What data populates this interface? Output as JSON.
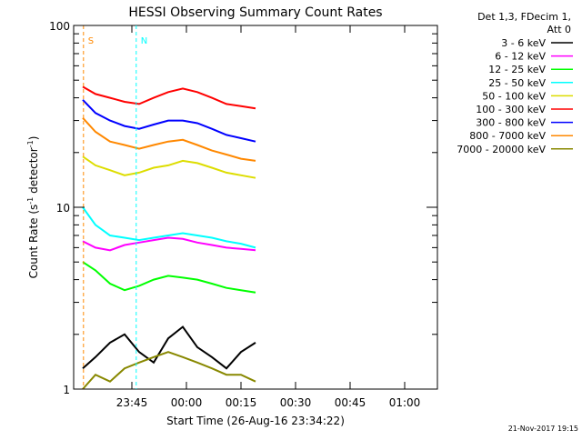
{
  "chart_data": {
    "type": "line",
    "title": "HESSI Observing Summary Count Rates",
    "xlabel": "Start Time (26-Aug-16 23:34:22)",
    "ylabel": "Count Rate (s",
    "ylabel_sup": "-1",
    "ylabel_tail": " detector",
    "ylabel_sup2": "-1",
    "ylabel_end": ")",
    "y_scale": "log",
    "ylim": [
      1,
      100
    ],
    "xlim_minutes": [
      -16,
      84
    ],
    "x_tick_labels": [
      {
        "label": "23:45",
        "minute": 0
      },
      {
        "label": "00:00",
        "minute": 15
      },
      {
        "label": "00:15",
        "minute": 30
      },
      {
        "label": "00:30",
        "minute": 45
      },
      {
        "label": "00:45",
        "minute": 60
      },
      {
        "label": "01:00",
        "minute": 75
      }
    ],
    "y_tick_labels": [
      {
        "label": "1",
        "value": 1
      },
      {
        "label": "10",
        "value": 10
      },
      {
        "label": "100",
        "value": 100
      }
    ],
    "legend_header": [
      "Det 1,3, FDecim 1,",
      "Att 0"
    ],
    "legend_position": "right",
    "series": [
      {
        "name": "3 - 6 keV",
        "color": "#000000",
        "values": [
          1.3,
          1.5,
          1.8,
          2.0,
          1.6,
          1.4,
          1.9,
          2.2,
          1.7,
          1.5,
          1.3,
          1.6,
          1.8
        ]
      },
      {
        "name": "6 - 12 keV",
        "color": "#ff00ff",
        "values": [
          6.5,
          6.0,
          5.8,
          6.2,
          6.4,
          6.6,
          6.8,
          6.7,
          6.4,
          6.2,
          6.0,
          5.9,
          5.8
        ]
      },
      {
        "name": "12 - 25 keV",
        "color": "#00ff00",
        "values": [
          5.0,
          4.5,
          3.8,
          3.5,
          3.7,
          4.0,
          4.2,
          4.1,
          4.0,
          3.8,
          3.6,
          3.5,
          3.4
        ]
      },
      {
        "name": "25 - 50 keV",
        "color": "#00ffff",
        "values": [
          10.0,
          8.0,
          7.0,
          6.8,
          6.6,
          6.8,
          7.0,
          7.2,
          7.0,
          6.8,
          6.5,
          6.3,
          6.0
        ]
      },
      {
        "name": "50 - 100 keV",
        "color": "#dddd00",
        "values": [
          19.0,
          17.0,
          16.0,
          15.0,
          15.5,
          16.5,
          17.0,
          18.0,
          17.5,
          16.5,
          15.5,
          15.0,
          14.5
        ]
      },
      {
        "name": "100 - 300 keV",
        "color": "#ff0000",
        "values": [
          46.0,
          42.0,
          40.0,
          38.0,
          37.0,
          40.0,
          43.0,
          45.0,
          43.0,
          40.0,
          37.0,
          36.0,
          35.0
        ]
      },
      {
        "name": "300 - 800 keV",
        "color": "#0000ff",
        "values": [
          39.0,
          33.0,
          30.0,
          28.0,
          27.0,
          28.5,
          30.0,
          30.0,
          29.0,
          27.0,
          25.0,
          24.0,
          23.0
        ]
      },
      {
        "name": "800 - 7000 keV",
        "color": "#ff8800",
        "values": [
          31.0,
          26.0,
          23.0,
          22.0,
          21.0,
          22.0,
          23.0,
          23.5,
          22.0,
          20.5,
          19.5,
          18.5,
          18.0
        ]
      },
      {
        "name": "7000 - 20000 keV",
        "color": "#888800",
        "values": [
          1.0,
          1.2,
          1.1,
          1.3,
          1.4,
          1.5,
          1.6,
          1.5,
          1.4,
          1.3,
          1.2,
          1.2,
          1.1
        ]
      }
    ],
    "x_minutes": [
      -13.5,
      -10,
      -6,
      -2,
      2,
      6,
      10,
      14,
      18,
      22,
      26,
      30,
      34
    ],
    "annotations": [
      {
        "label": "S",
        "color": "#ff8800",
        "minute": -13.3
      },
      {
        "label": "N",
        "color": "#00ffff",
        "minute": 1.2
      }
    ],
    "timestamp": "21-Nov-2017 19:15"
  }
}
